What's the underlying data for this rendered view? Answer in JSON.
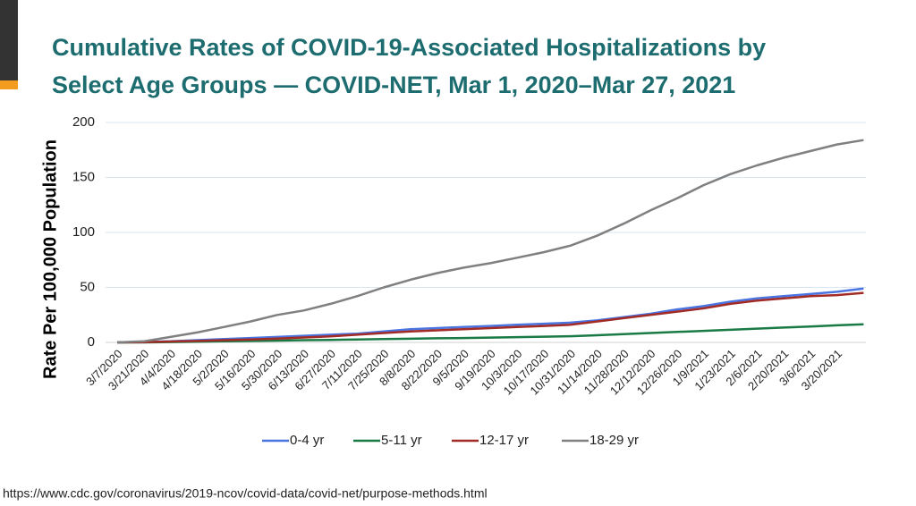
{
  "chart_data": {
    "type": "line",
    "title": [
      "Cumulative Rates of COVID-19-Associated Hospitalizations by",
      "Select Age Groups — COVID-NET, Mar 1, 2020–Mar 27, 2021"
    ],
    "y_label": "Rate Per 100,000 Population",
    "source": "https://www.cdc.gov/coronavirus/2019-ncov/covid-data/covid-net/purpose-methods.html",
    "categories": [
      "3/7/2020",
      "3/21/2020",
      "4/4/2020",
      "4/18/2020",
      "5/2/2020",
      "5/16/2020",
      "5/30/2020",
      "6/13/2020",
      "6/27/2020",
      "7/11/2020",
      "7/25/2020",
      "8/8/2020",
      "8/22/2020",
      "9/5/2020",
      "9/19/2020",
      "10/3/2020",
      "10/17/2020",
      "10/31/2020",
      "11/14/2020",
      "11/28/2020",
      "12/12/2020",
      "12/26/2020",
      "1/9/2021",
      "1/23/2021",
      "2/6/2021",
      "2/20/2021",
      "3/6/2021",
      "3/20/2021",
      null
    ],
    "series": [
      {
        "name": "0-4 yr",
        "color": "#4a74e0",
        "values": [
          0,
          0.5,
          1,
          2,
          3,
          4,
          5,
          6,
          7,
          8,
          10,
          12,
          13,
          14,
          15,
          16,
          17,
          18,
          20,
          23,
          26,
          30,
          33,
          37,
          40,
          42,
          44,
          46,
          49
        ]
      },
      {
        "name": "5-11 yr",
        "color": "#1a7a45",
        "values": [
          0,
          0,
          0.3,
          0.6,
          1,
          1.3,
          1.6,
          2,
          2.3,
          2.7,
          3,
          3.3,
          3.7,
          4,
          4.4,
          4.8,
          5.2,
          5.6,
          6.5,
          7.5,
          8.5,
          9.5,
          10.5,
          11.5,
          12.5,
          13.5,
          14.5,
          15.5,
          16.5
        ]
      },
      {
        "name": "12-17 yr",
        "color": "#a32b26",
        "values": [
          0,
          0.2,
          0.8,
          1.3,
          2,
          2.7,
          3.5,
          4.5,
          5.5,
          7,
          8.5,
          10,
          11,
          12,
          13,
          14,
          15,
          16,
          19,
          22,
          25,
          28,
          31,
          35,
          38,
          40,
          42,
          43,
          45
        ]
      },
      {
        "name": "18-29 yr",
        "color": "#808080",
        "values": [
          0,
          1,
          5,
          9,
          14,
          19,
          25,
          29,
          35,
          42,
          50,
          57,
          63,
          68,
          72,
          77,
          82,
          88,
          97,
          108,
          120,
          131,
          143,
          153,
          161,
          168,
          174,
          180,
          184
        ]
      }
    ],
    "ylim": [
      0,
      200
    ],
    "yticks": [
      0,
      50,
      100,
      150,
      200
    ],
    "grid": true
  }
}
